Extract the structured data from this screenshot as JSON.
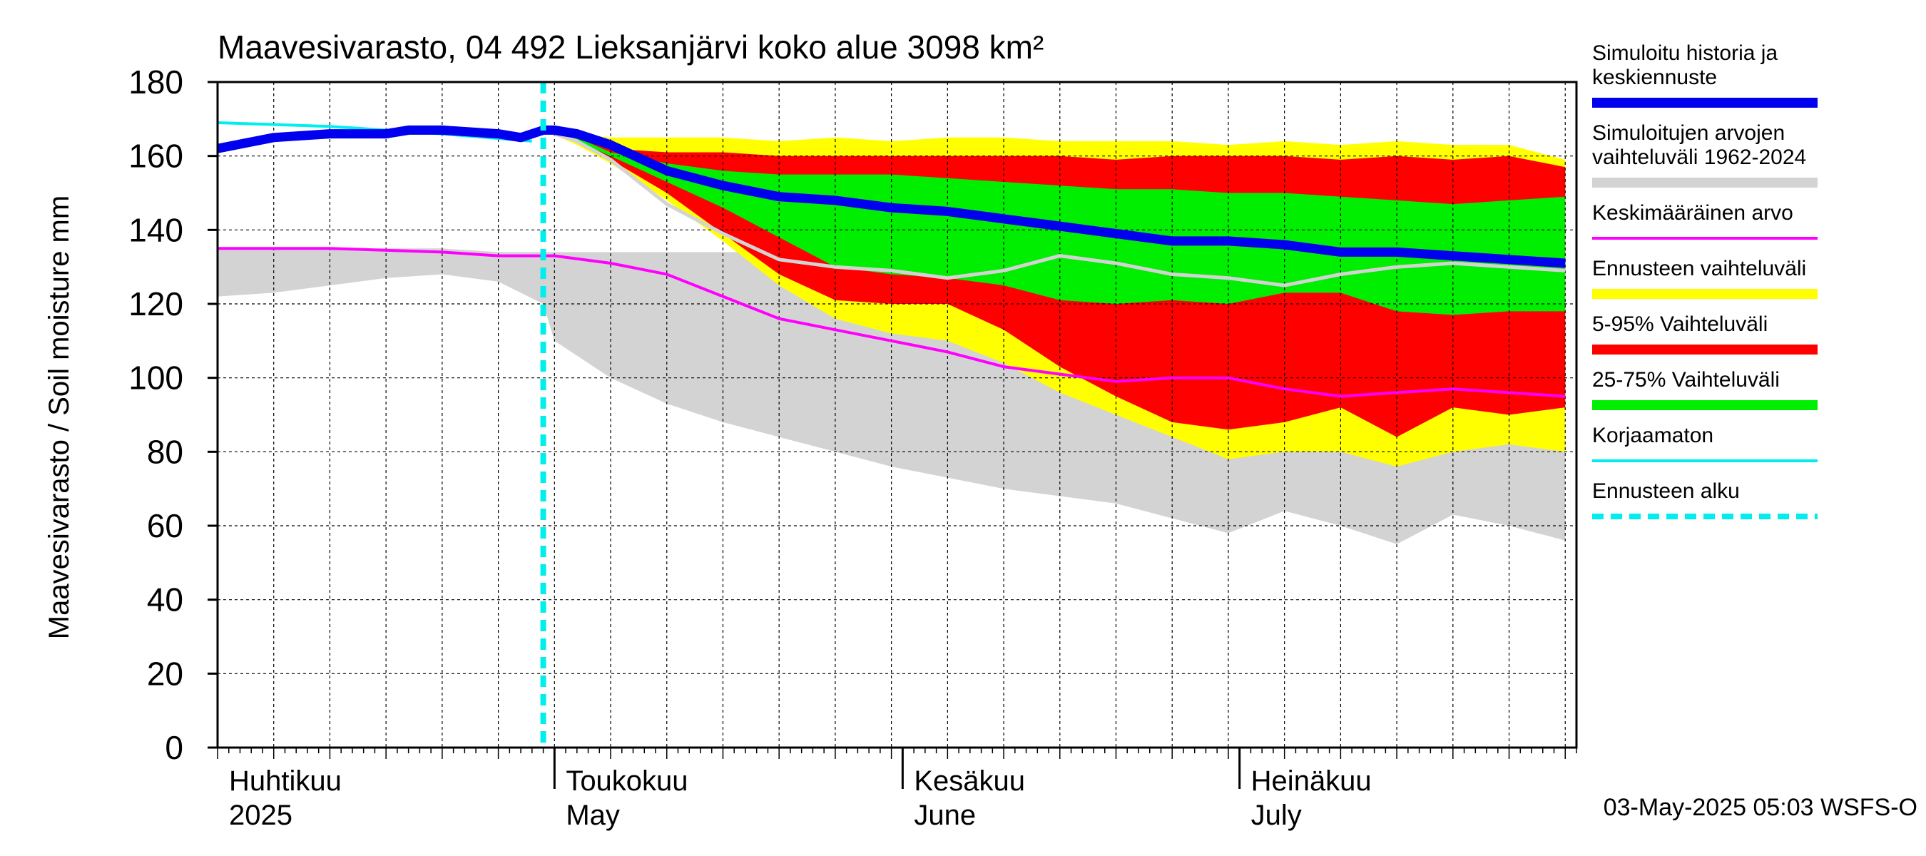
{
  "chart_data": {
    "type": "area",
    "title": "Maavesivarasto, 04 492 Lieksanjärvi koko alue 3098 km²",
    "ylabel": "Maavesivarasto / Soil moisture   mm",
    "xlabel": "",
    "ylim": [
      0,
      180
    ],
    "y_ticks": [
      0,
      20,
      40,
      60,
      80,
      100,
      120,
      140,
      160,
      180
    ],
    "xlim": [
      "2025-04-01",
      "2025-07-31"
    ],
    "grid": true,
    "legend_position": "right",
    "month_labels": [
      {
        "date": "2025-04-01",
        "fi": "Huhtikuu",
        "en": "2025"
      },
      {
        "date": "2025-05-01",
        "fi": "Toukokuu",
        "en": "May"
      },
      {
        "date": "2025-06-01",
        "fi": "Kesäkuu",
        "en": "June"
      },
      {
        "date": "2025-07-01",
        "fi": "Heinäkuu",
        "en": "July"
      }
    ],
    "forecast_start": "2025-04-30",
    "footer": "03-May-2025 05:03 WSFS-O",
    "colors": {
      "history": "#0000ee",
      "range_1962_2024": "#d3d3d3",
      "mean": "#ff00ff",
      "forecast_range": "#ffff00",
      "p5_95": "#ff0000",
      "p25_75": "#00ee00",
      "uncorrected": "#00eeee",
      "forecast_start": "#00eeee",
      "median_forecast": "#d3d3d3"
    },
    "legend": [
      {
        "key": "history",
        "lines": [
          "Simuloitu historia ja",
          "keskiennuste"
        ],
        "style": "thick"
      },
      {
        "key": "range_1962_2024",
        "lines": [
          "Simuloitujen arvojen",
          "vaihteluväli 1962-2024"
        ],
        "style": "thick"
      },
      {
        "key": "mean",
        "lines": [
          "Keskimääräinen arvo"
        ],
        "style": "thin"
      },
      {
        "key": "forecast_range",
        "lines": [
          "Ennusteen vaihteluväli"
        ],
        "style": "thick"
      },
      {
        "key": "p5_95",
        "lines": [
          "5-95% Vaihteluväli"
        ],
        "style": "thick"
      },
      {
        "key": "p25_75",
        "lines": [
          "25-75% Vaihteluväli"
        ],
        "style": "thick"
      },
      {
        "key": "uncorrected",
        "lines": [
          "Korjaamaton"
        ],
        "style": "thin"
      },
      {
        "key": "forecast_start",
        "lines": [
          "Ennusteen alku"
        ],
        "style": "dashed"
      }
    ],
    "x_days": [
      0,
      5,
      10,
      15,
      20,
      25,
      29,
      30,
      35,
      40,
      45,
      50,
      55,
      60,
      65,
      70,
      75,
      80,
      85,
      90,
      95,
      100,
      105,
      110,
      115,
      120
    ],
    "series": {
      "range_1962_2024": {
        "low": [
          122,
          123,
          125,
          127,
          128,
          126,
          120,
          110,
          100,
          93,
          88,
          84,
          80,
          76,
          73,
          70,
          68,
          66,
          62,
          58,
          64,
          60,
          55,
          63,
          60,
          56
        ],
        "high": [
          135,
          135,
          135,
          135,
          135,
          134,
          134,
          134,
          134,
          134,
          134,
          134,
          134,
          134,
          135,
          134,
          135,
          134,
          135,
          134,
          134,
          134,
          135,
          134,
          134,
          134
        ]
      },
      "forecast_range": {
        "x_days": [
          29,
          32,
          35,
          40,
          45,
          50,
          55,
          60,
          65,
          70,
          75,
          80,
          85,
          90,
          95,
          100,
          105,
          110,
          115,
          120
        ],
        "low": [
          167,
          163,
          158,
          148,
          137,
          125,
          116,
          112,
          110,
          104,
          96,
          90,
          84,
          78,
          80,
          80,
          76,
          80,
          82,
          80
        ],
        "high": [
          167,
          166,
          165,
          165,
          165,
          164,
          165,
          164,
          165,
          165,
          164,
          164,
          164,
          163,
          164,
          163,
          164,
          163,
          163,
          159
        ]
      },
      "p5_95": {
        "x_days": [
          29,
          32,
          35,
          40,
          45,
          50,
          55,
          60,
          65,
          70,
          75,
          80,
          85,
          90,
          95,
          100,
          105,
          110,
          115,
          120
        ],
        "low": [
          167,
          164,
          159,
          150,
          139,
          128,
          121,
          120,
          120,
          113,
          103,
          95,
          88,
          86,
          88,
          92,
          84,
          92,
          90,
          92
        ],
        "high": [
          167,
          165,
          162,
          161,
          161,
          160,
          160,
          160,
          160,
          160,
          160,
          159,
          160,
          160,
          160,
          159,
          160,
          159,
          160,
          157
        ]
      },
      "p25_75": {
        "x_days": [
          29,
          32,
          35,
          40,
          45,
          50,
          55,
          60,
          65,
          70,
          75,
          80,
          85,
          90,
          95,
          100,
          105,
          110,
          115,
          120
        ],
        "low": [
          167,
          164,
          160,
          153,
          146,
          138,
          130,
          128,
          127,
          125,
          121,
          120,
          121,
          120,
          123,
          123,
          118,
          117,
          118,
          118
        ],
        "high": [
          167,
          165,
          161,
          158,
          156,
          155,
          155,
          155,
          154,
          153,
          152,
          151,
          151,
          150,
          150,
          149,
          148,
          147,
          148,
          149
        ]
      },
      "median_forecast": {
        "x_days": [
          29,
          32,
          35,
          40,
          45,
          50,
          55,
          60,
          65,
          70,
          75,
          80,
          85,
          90,
          95,
          100,
          105,
          110,
          115,
          120
        ],
        "values": [
          167,
          164,
          159,
          147,
          139,
          132,
          130,
          129,
          127,
          129,
          133,
          131,
          128,
          127,
          125,
          128,
          130,
          131,
          130,
          129
        ]
      },
      "history_median": {
        "x_days": [
          0,
          5,
          10,
          15,
          17,
          20,
          25,
          27,
          29,
          30,
          32,
          35,
          40,
          45,
          50,
          55,
          60,
          65,
          70,
          75,
          80,
          85,
          90,
          95,
          100,
          105,
          110,
          115,
          120
        ],
        "values": [
          162,
          165,
          166,
          166,
          167,
          167,
          166,
          165,
          167,
          167,
          166,
          163,
          156,
          152,
          149,
          148,
          146,
          145,
          143,
          141,
          139,
          137,
          137,
          136,
          134,
          134,
          133,
          132,
          131
        ]
      },
      "mean": {
        "x_days": [
          0,
          10,
          20,
          25,
          30,
          35,
          40,
          45,
          50,
          55,
          60,
          65,
          70,
          75,
          80,
          85,
          90,
          95,
          100,
          105,
          110,
          115,
          120
        ],
        "values": [
          135,
          135,
          134,
          133,
          133,
          131,
          128,
          122,
          116,
          113,
          110,
          107,
          103,
          101,
          99,
          100,
          100,
          97,
          95,
          96,
          97,
          96,
          95
        ]
      },
      "uncorrected": {
        "x_days": [
          0,
          10,
          20,
          28
        ],
        "values": [
          169,
          168,
          166,
          164
        ]
      }
    }
  }
}
